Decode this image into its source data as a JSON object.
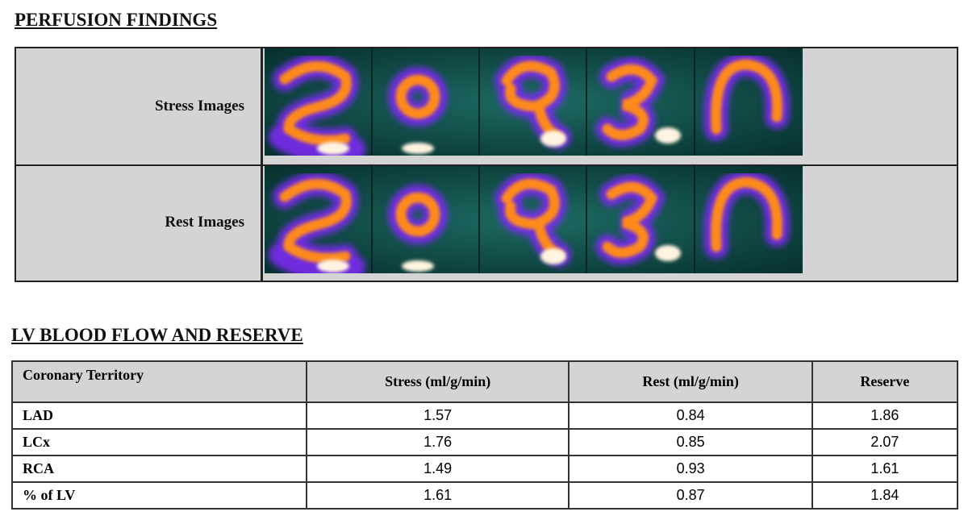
{
  "perfusion": {
    "title": "PERFUSION FINDINGS",
    "rows": [
      "Stress Images",
      "Rest Images"
    ]
  },
  "blood_flow": {
    "title": "LV BLOOD FLOW AND RESERVE",
    "table": {
      "header": [
        "Coronary Territory",
        "Stress (ml/g/min)",
        "Rest (ml/g/min)",
        "Reserve"
      ],
      "rows": [
        [
          "LAD",
          "1.57",
          "0.84",
          "1.86"
        ],
        [
          "LCx",
          "1.76",
          "0.85",
          "2.07"
        ],
        [
          "RCA",
          "1.49",
          "0.93",
          "1.61"
        ],
        [
          "% of LV",
          "1.61",
          "0.87",
          "1.84"
        ]
      ]
    }
  }
}
